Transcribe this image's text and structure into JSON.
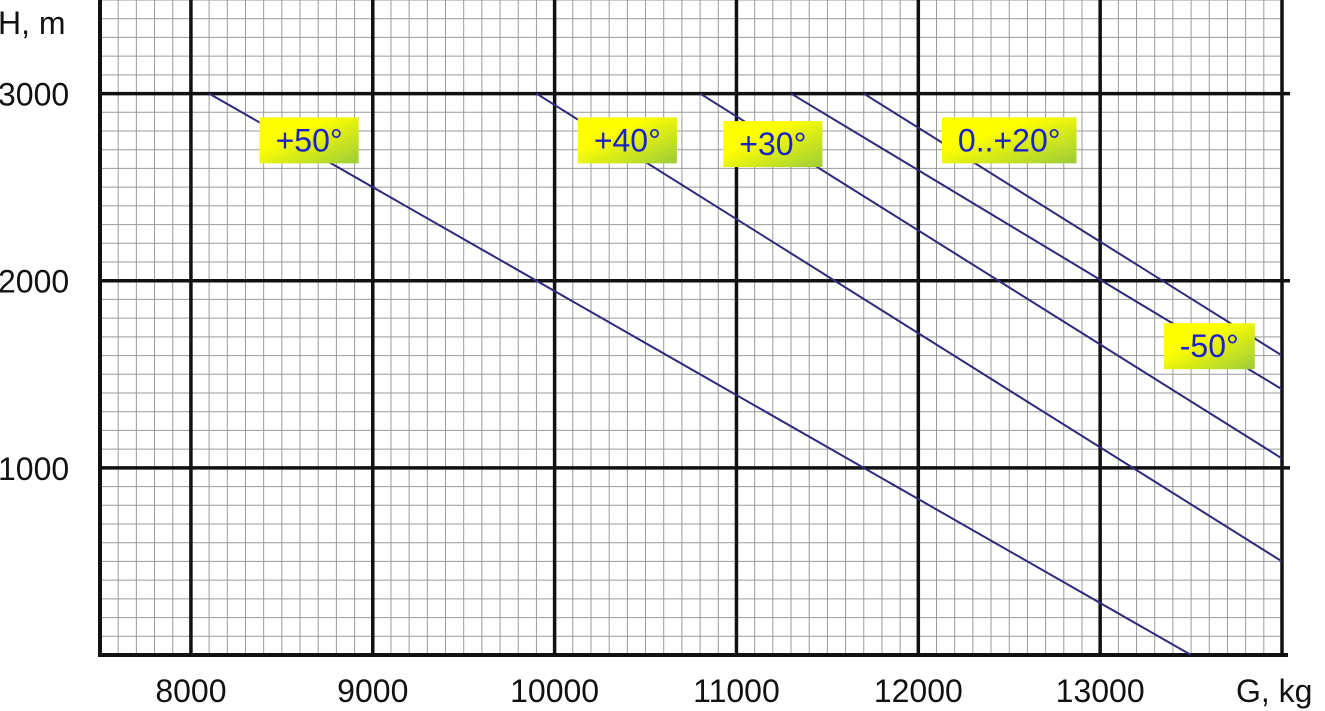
{
  "chart_data": {
    "type": "line",
    "title": "",
    "xlabel": "G, kg",
    "ylabel": "H, m",
    "xlim": [
      7500,
      14000
    ],
    "ylim": [
      0,
      3500
    ],
    "x_ticks": [
      8000,
      9000,
      10000,
      11000,
      12000,
      13000
    ],
    "y_ticks": [
      1000,
      2000,
      3000
    ],
    "x_tick_labels": [
      "8000",
      "9000",
      "10000",
      "11000",
      "12000",
      "13000"
    ],
    "y_tick_labels": [
      "1000",
      "2000",
      "3000"
    ],
    "grid": true,
    "grid_minor_x_step": 100,
    "grid_minor_y_step": 100,
    "legend": "inline labels",
    "colors": {
      "line": "#2e2a7a",
      "label_text": "#1a22c8",
      "label_bg_light": "#ffff00",
      "label_bg_dark": "#9ccc3a",
      "major_grid": "#111111",
      "minor_grid": "#9a9a9a"
    },
    "series": [
      {
        "name": "+50°",
        "points": [
          [
            8100,
            3000
          ],
          [
            13500,
            0
          ]
        ]
      },
      {
        "name": "+40°",
        "points": [
          [
            9900,
            3000
          ],
          [
            14000,
            500
          ]
        ]
      },
      {
        "name": "+30°",
        "points": [
          [
            10800,
            3000
          ],
          [
            14000,
            1050
          ]
        ]
      },
      {
        "name": "",
        "points": [
          [
            11300,
            3000
          ],
          [
            14000,
            1420
          ]
        ]
      },
      {
        "name": "",
        "points": [
          [
            11700,
            3000
          ],
          [
            14000,
            1600
          ]
        ]
      }
    ],
    "annotations": [
      {
        "text": "+50°",
        "x": 8650,
        "y": 2750
      },
      {
        "text": "+40°",
        "x": 10400,
        "y": 2750
      },
      {
        "text": "+30°",
        "x": 11200,
        "y": 2730
      },
      {
        "text": "0..+20°",
        "x": 12500,
        "y": 2750
      },
      {
        "text": "-50°",
        "x": 13600,
        "y": 1650
      }
    ]
  }
}
